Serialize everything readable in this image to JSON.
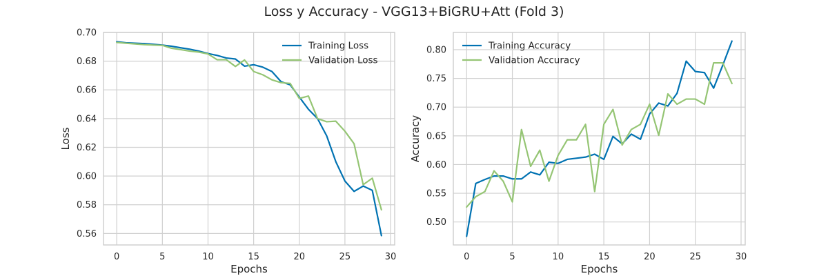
{
  "figure": {
    "title": "Loss y Accuracy - VGG13+BiGRU+Att (Fold 3)"
  },
  "colors": {
    "training": "#0072B2",
    "validation": "#95C574",
    "grid": "#d0d0d0",
    "frame": "#cccccc",
    "text": "#262626"
  },
  "chart_data": [
    {
      "type": "line",
      "xlabel": "Epochs",
      "ylabel": "Loss",
      "xlim": [
        -1.45,
        30.45
      ],
      "ylim": [
        0.552,
        0.7
      ],
      "xticks": [
        0,
        5,
        10,
        15,
        20,
        25,
        30
      ],
      "yticks": [
        0.56,
        0.58,
        0.6,
        0.62,
        0.64,
        0.66,
        0.68,
        0.7
      ],
      "xtick_labels": [
        "0",
        "5",
        "10",
        "15",
        "20",
        "25",
        "30"
      ],
      "ytick_labels": [
        "0.56",
        "0.58",
        "0.60",
        "0.62",
        "0.64",
        "0.66",
        "0.68",
        "0.70"
      ],
      "legend_position": "upper-right",
      "x": [
        0,
        1,
        2,
        3,
        4,
        5,
        6,
        7,
        8,
        9,
        10,
        11,
        12,
        13,
        14,
        15,
        16,
        17,
        18,
        19,
        20,
        21,
        22,
        23,
        24,
        25,
        26,
        27,
        28,
        29
      ],
      "series": [
        {
          "name": "Training Loss",
          "color_key": "training",
          "values": [
            0.6935,
            0.6928,
            0.6925,
            0.6922,
            0.6917,
            0.6912,
            0.6904,
            0.6893,
            0.6883,
            0.687,
            0.6853,
            0.684,
            0.6822,
            0.6815,
            0.6765,
            0.6775,
            0.6758,
            0.6728,
            0.6657,
            0.6635,
            0.655,
            0.6465,
            0.64,
            0.628,
            0.61,
            0.5965,
            0.5893,
            0.593,
            0.59,
            0.5585
          ]
        },
        {
          "name": "Validation Loss",
          "color_key": "validation",
          "values": [
            0.693,
            0.6925,
            0.692,
            0.6915,
            0.6912,
            0.691,
            0.689,
            0.688,
            0.687,
            0.6863,
            0.685,
            0.681,
            0.681,
            0.6763,
            0.6808,
            0.6728,
            0.6705,
            0.667,
            0.665,
            0.6645,
            0.654,
            0.6557,
            0.64,
            0.6378,
            0.6382,
            0.6312,
            0.6225,
            0.594,
            0.5985,
            0.5765
          ]
        }
      ]
    },
    {
      "type": "line",
      "xlabel": "Epochs",
      "ylabel": "Accuracy",
      "xlim": [
        -1.45,
        30.45
      ],
      "ylim": [
        0.46,
        0.83
      ],
      "xticks": [
        0,
        5,
        10,
        15,
        20,
        25,
        30
      ],
      "yticks": [
        0.5,
        0.55,
        0.6,
        0.65,
        0.7,
        0.75,
        0.8
      ],
      "xtick_labels": [
        "0",
        "5",
        "10",
        "15",
        "20",
        "25",
        "30"
      ],
      "ytick_labels": [
        "0.50",
        "0.55",
        "0.60",
        "0.65",
        "0.70",
        "0.75",
        "0.80"
      ],
      "legend_position": "upper-left",
      "x": [
        0,
        1,
        2,
        3,
        4,
        5,
        6,
        7,
        8,
        9,
        10,
        11,
        12,
        13,
        14,
        15,
        16,
        17,
        18,
        19,
        20,
        21,
        22,
        23,
        24,
        25,
        26,
        27,
        28,
        29
      ],
      "series": [
        {
          "name": "Training Accuracy",
          "color_key": "training",
          "values": [
            0.475,
            0.567,
            0.574,
            0.58,
            0.58,
            0.575,
            0.575,
            0.587,
            0.582,
            0.604,
            0.602,
            0.609,
            0.611,
            0.613,
            0.618,
            0.609,
            0.649,
            0.636,
            0.653,
            0.644,
            0.688,
            0.707,
            0.702,
            0.724,
            0.78,
            0.762,
            0.76,
            0.733,
            0.773,
            0.815
          ]
        },
        {
          "name": "Validation Accuracy",
          "color_key": "validation",
          "values": [
            0.526,
            0.544,
            0.553,
            0.589,
            0.571,
            0.535,
            0.661,
            0.597,
            0.625,
            0.571,
            0.616,
            0.643,
            0.643,
            0.67,
            0.553,
            0.67,
            0.696,
            0.634,
            0.661,
            0.67,
            0.705,
            0.651,
            0.723,
            0.705,
            0.714,
            0.714,
            0.705,
            0.777,
            0.777,
            0.741
          ]
        }
      ]
    }
  ]
}
